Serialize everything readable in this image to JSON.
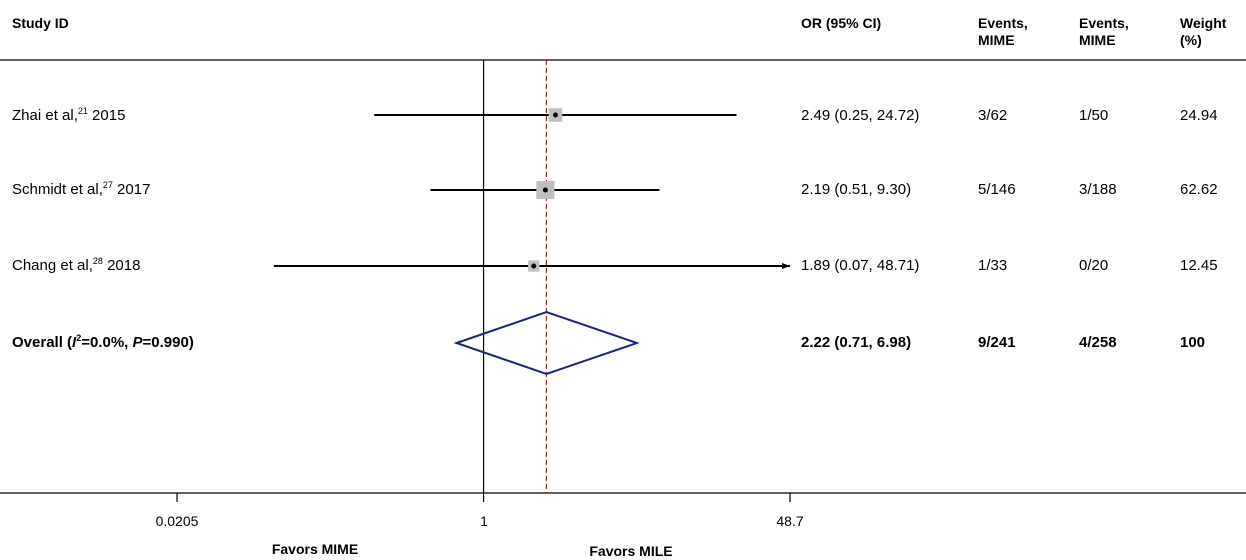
{
  "headers": {
    "study": "Study ID",
    "or": "OR (95% CI)",
    "events1": "Events,",
    "events1_sub": "MIME",
    "events2": "Events,",
    "events2_sub": "MIME",
    "weight": "Weight",
    "weight_sub": "(%)"
  },
  "studies": [
    {
      "author": "Zhai et al,",
      "ref": "21",
      "year": " 2015",
      "or_text": "2.49 (0.25, 24.72)",
      "events1": "3/62",
      "events2": "1/50",
      "weight": "24.94"
    },
    {
      "author": "Schmidt et al,",
      "ref": "27",
      "year": " 2017",
      "or_text": "2.19 (0.51, 9.30)",
      "events1": "5/146",
      "events2": "3/188",
      "weight": "62.62"
    },
    {
      "author": "Chang et al,",
      "ref": "28",
      "year": " 2018",
      "or_text": "1.89 (0.07, 48.71)",
      "events1": "1/33",
      "events2": "0/20",
      "weight": "12.45"
    }
  ],
  "overall": {
    "label_prefix": "Overall (",
    "i2_letter": "I",
    "i2_sup": "2",
    "i2_rest": "=0.0%, ",
    "p_letter": "P",
    "p_rest": "=0.990)",
    "or_text": "2.22 (0.71, 6.98)",
    "events1": "9/241",
    "events2": "4/258",
    "weight": "100"
  },
  "axis": {
    "tick_labels": [
      "0.0205",
      "1",
      "48.7"
    ],
    "favors_left": "Favors MIME",
    "favors_right": "Favors MILE"
  },
  "colors": {
    "box": "#c0c0c0",
    "diamond": "#1a237e",
    "dashed": "#8b2a2a",
    "line": "#000000"
  },
  "chart_data": {
    "type": "forest",
    "scale": "log",
    "xlim": [
      0.0205,
      48.7
    ],
    "ticks": [
      0.0205,
      1,
      48.7
    ],
    "null_line": 1,
    "studies": [
      {
        "or": 2.49,
        "lo": 0.25,
        "hi": 24.72,
        "weight": 24.94
      },
      {
        "or": 2.19,
        "lo": 0.51,
        "hi": 9.3,
        "weight": 62.62
      },
      {
        "or": 1.89,
        "lo": 0.07,
        "hi": 48.71,
        "weight": 12.45,
        "arrow_right": true
      }
    ],
    "overall": {
      "or": 2.22,
      "lo": 0.71,
      "hi": 6.98
    }
  }
}
